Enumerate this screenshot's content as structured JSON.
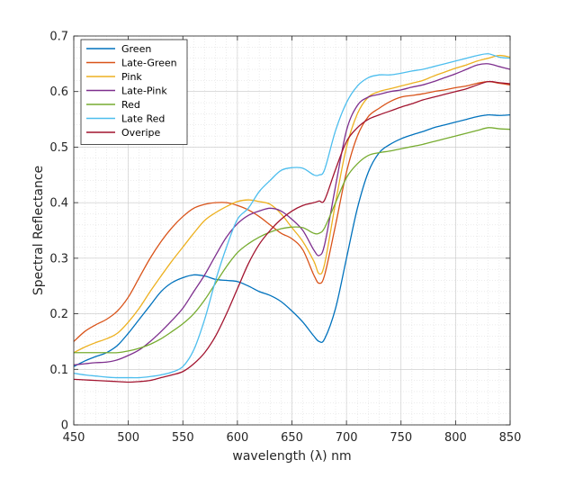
{
  "chart_data": {
    "type": "line",
    "xlabel": "wavelength (λ) nm",
    "ylabel": "Spectral Reflectance",
    "xlim": [
      450,
      850
    ],
    "ylim": [
      0,
      0.7
    ],
    "xticks": [
      "450",
      "500",
      "550",
      "600",
      "650",
      "700",
      "750",
      "800",
      "850"
    ],
    "yticks": [
      "0",
      "0.1",
      "0.2",
      "0.3",
      "0.4",
      "0.5",
      "0.6",
      "0.7"
    ],
    "grid": true,
    "minor_grid": true,
    "legend_position": "top-left",
    "x": [
      450,
      460,
      470,
      480,
      490,
      500,
      510,
      520,
      530,
      540,
      550,
      560,
      570,
      580,
      590,
      600,
      610,
      620,
      630,
      640,
      650,
      660,
      670,
      675,
      680,
      690,
      700,
      710,
      720,
      730,
      740,
      750,
      760,
      770,
      780,
      790,
      800,
      810,
      820,
      830,
      840,
      850
    ],
    "series": [
      {
        "name": "Green",
        "color": "#0072BD",
        "values": [
          0.105,
          0.115,
          0.123,
          0.13,
          0.143,
          0.165,
          0.19,
          0.215,
          0.24,
          0.256,
          0.265,
          0.27,
          0.268,
          0.262,
          0.26,
          0.258,
          0.25,
          0.24,
          0.233,
          0.222,
          0.205,
          0.185,
          0.16,
          0.15,
          0.155,
          0.21,
          0.3,
          0.39,
          0.455,
          0.49,
          0.505,
          0.515,
          0.522,
          0.528,
          0.535,
          0.54,
          0.545,
          0.55,
          0.555,
          0.558,
          0.557,
          0.558
        ]
      },
      {
        "name": "Late-Green",
        "color": "#D95319",
        "values": [
          0.15,
          0.168,
          0.18,
          0.19,
          0.205,
          0.23,
          0.265,
          0.3,
          0.33,
          0.355,
          0.375,
          0.39,
          0.397,
          0.4,
          0.4,
          0.395,
          0.387,
          0.375,
          0.36,
          0.345,
          0.335,
          0.315,
          0.27,
          0.255,
          0.27,
          0.36,
          0.455,
          0.52,
          0.555,
          0.57,
          0.582,
          0.59,
          0.593,
          0.596,
          0.6,
          0.603,
          0.607,
          0.61,
          0.615,
          0.618,
          0.615,
          0.612
        ]
      },
      {
        "name": "Pink",
        "color": "#EDB120",
        "values": [
          0.13,
          0.14,
          0.148,
          0.155,
          0.165,
          0.185,
          0.21,
          0.24,
          0.268,
          0.295,
          0.32,
          0.345,
          0.368,
          0.382,
          0.393,
          0.402,
          0.405,
          0.402,
          0.397,
          0.38,
          0.355,
          0.33,
          0.295,
          0.272,
          0.29,
          0.4,
          0.5,
          0.56,
          0.59,
          0.6,
          0.605,
          0.61,
          0.615,
          0.62,
          0.628,
          0.635,
          0.642,
          0.648,
          0.655,
          0.66,
          0.665,
          0.662
        ]
      },
      {
        "name": "Late-Pink",
        "color": "#7E2F8E",
        "values": [
          0.108,
          0.11,
          0.112,
          0.113,
          0.117,
          0.125,
          0.135,
          0.15,
          0.168,
          0.188,
          0.21,
          0.24,
          0.27,
          0.305,
          0.338,
          0.362,
          0.377,
          0.385,
          0.39,
          0.385,
          0.37,
          0.35,
          0.315,
          0.305,
          0.325,
          0.43,
          0.53,
          0.575,
          0.59,
          0.595,
          0.6,
          0.603,
          0.608,
          0.612,
          0.618,
          0.625,
          0.632,
          0.64,
          0.648,
          0.65,
          0.645,
          0.64
        ]
      },
      {
        "name": "Red",
        "color": "#77AC30",
        "values": [
          0.13,
          0.13,
          0.13,
          0.13,
          0.13,
          0.133,
          0.138,
          0.145,
          0.155,
          0.168,
          0.182,
          0.2,
          0.225,
          0.255,
          0.285,
          0.31,
          0.326,
          0.338,
          0.347,
          0.353,
          0.356,
          0.355,
          0.345,
          0.345,
          0.355,
          0.4,
          0.445,
          0.47,
          0.485,
          0.49,
          0.493,
          0.497,
          0.501,
          0.505,
          0.51,
          0.515,
          0.52,
          0.525,
          0.53,
          0.535,
          0.533,
          0.532
        ]
      },
      {
        "name": "Late Red",
        "color": "#4DBEEE",
        "values": [
          0.093,
          0.09,
          0.088,
          0.086,
          0.085,
          0.085,
          0.085,
          0.087,
          0.09,
          0.095,
          0.105,
          0.135,
          0.19,
          0.26,
          0.32,
          0.37,
          0.39,
          0.42,
          0.44,
          0.458,
          0.463,
          0.462,
          0.45,
          0.45,
          0.46,
          0.53,
          0.58,
          0.61,
          0.625,
          0.63,
          0.63,
          0.633,
          0.637,
          0.64,
          0.645,
          0.65,
          0.655,
          0.66,
          0.665,
          0.668,
          0.662,
          0.66
        ]
      },
      {
        "name": "Overipe",
        "color": "#A2142F",
        "values": [
          0.082,
          0.081,
          0.08,
          0.079,
          0.078,
          0.077,
          0.078,
          0.08,
          0.085,
          0.09,
          0.096,
          0.11,
          0.13,
          0.16,
          0.2,
          0.245,
          0.29,
          0.325,
          0.35,
          0.37,
          0.385,
          0.395,
          0.4,
          0.403,
          0.405,
          0.46,
          0.51,
          0.535,
          0.55,
          0.558,
          0.565,
          0.572,
          0.578,
          0.585,
          0.59,
          0.595,
          0.6,
          0.605,
          0.612,
          0.618,
          0.616,
          0.614
        ]
      }
    ]
  }
}
